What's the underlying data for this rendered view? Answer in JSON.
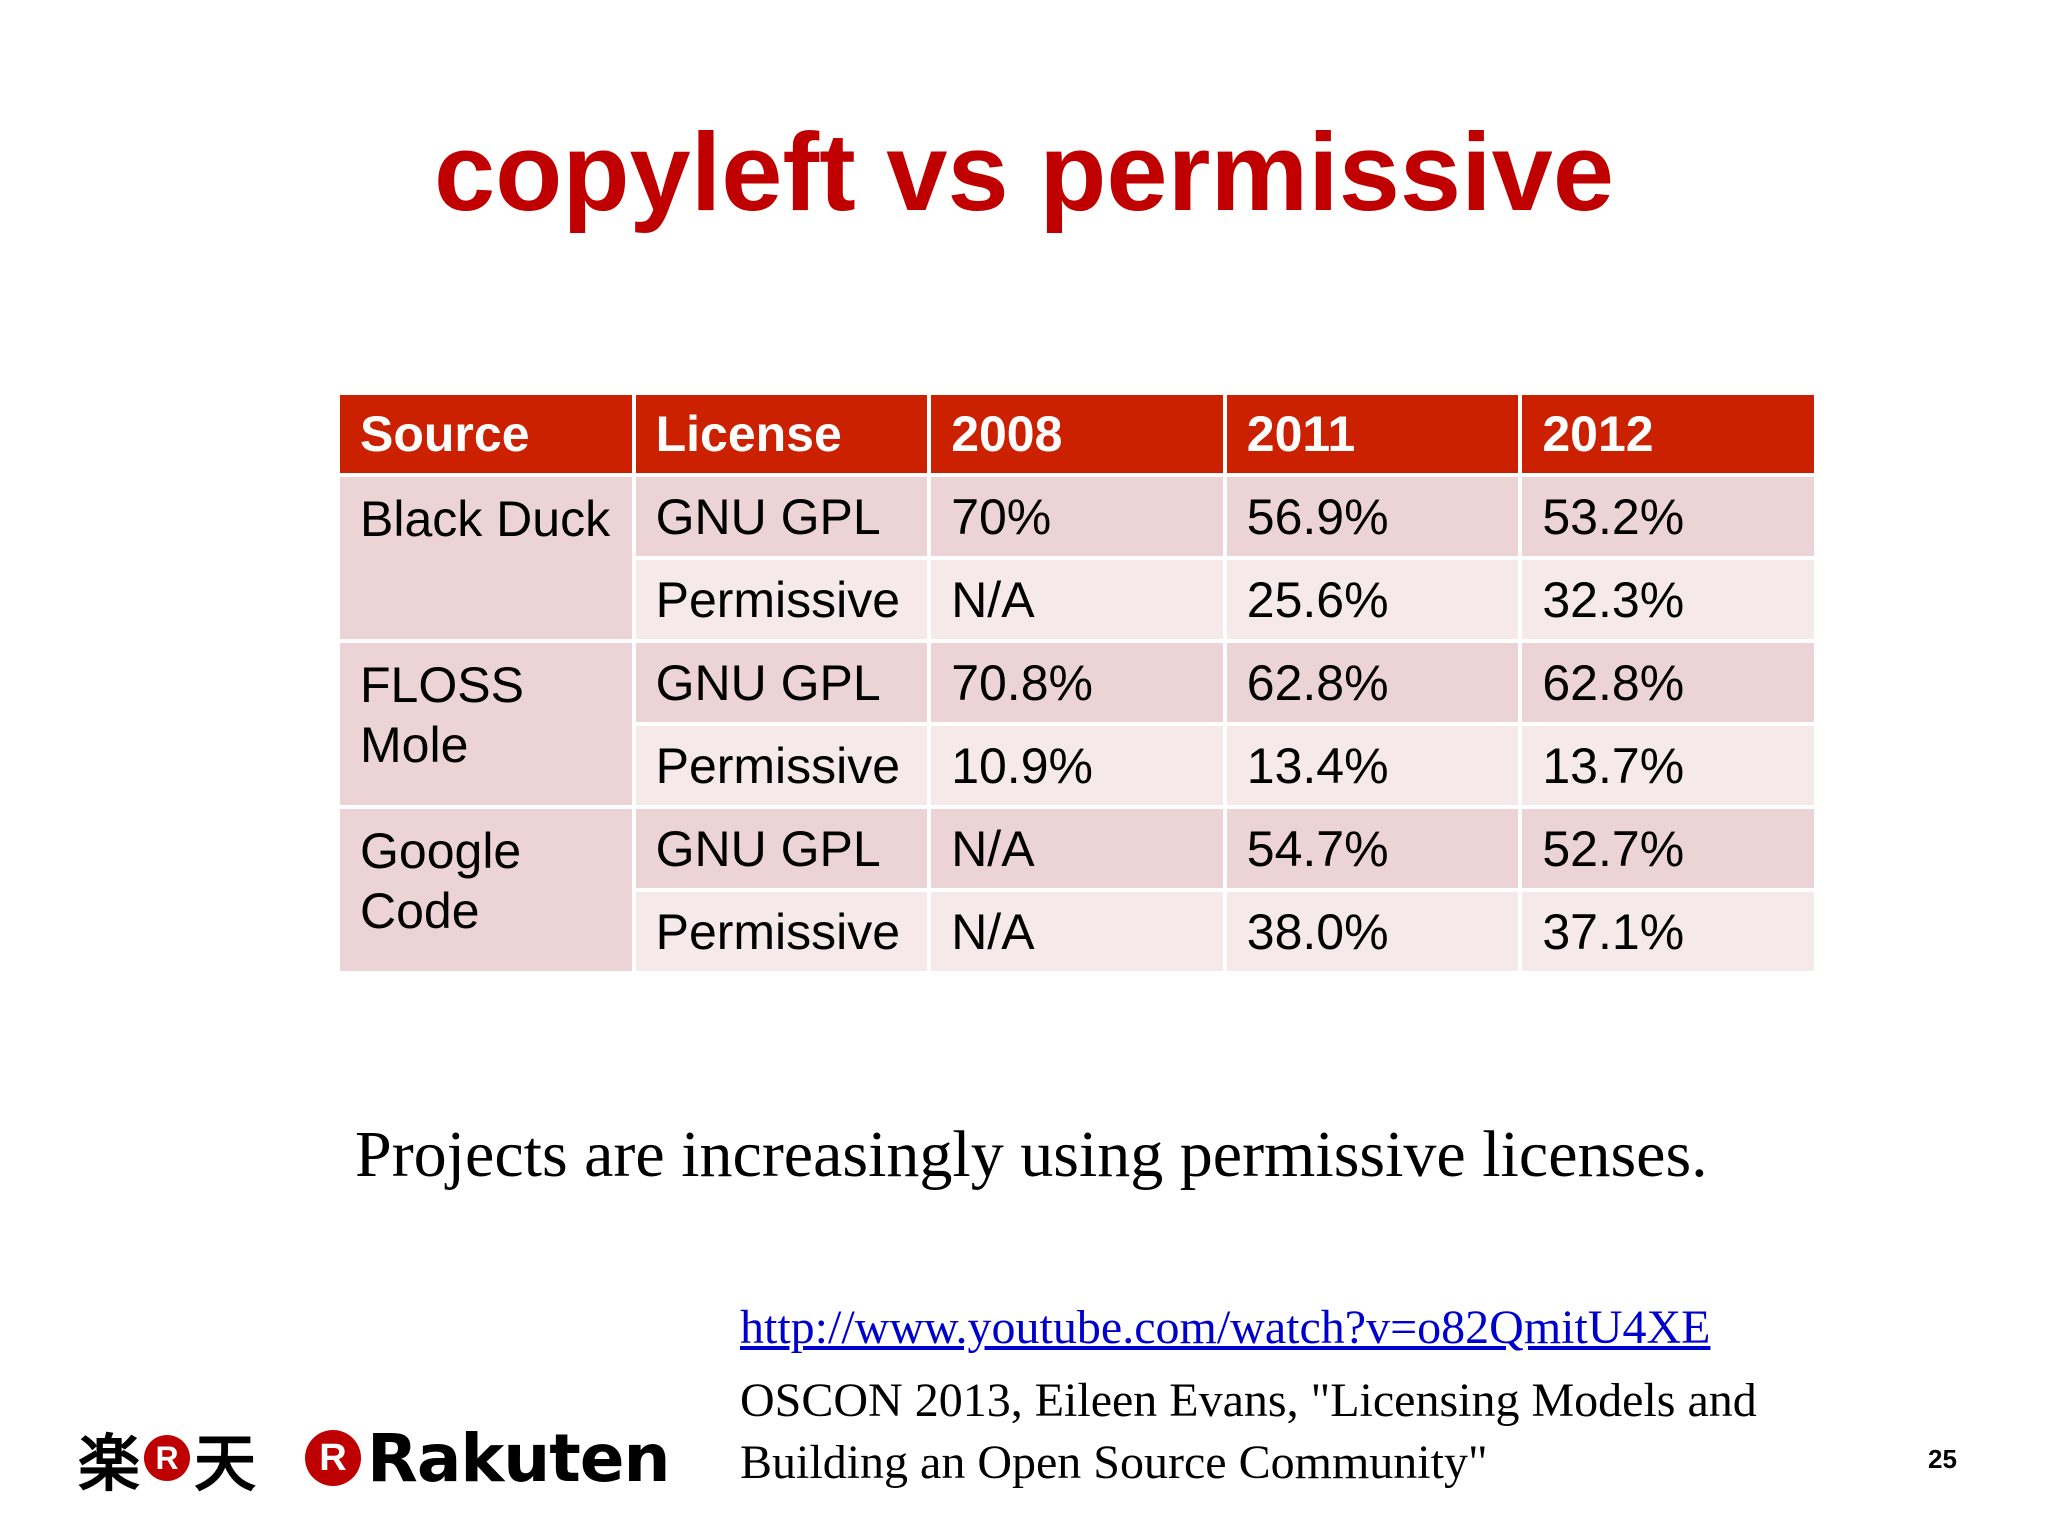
{
  "slide": {
    "title": "copyleft vs permissive",
    "page_number": "25",
    "accent_color": "#c00000",
    "header_color": "#cc2100"
  },
  "table": {
    "headers": [
      "Source",
      "License",
      "2008",
      "2011",
      "2012"
    ],
    "groups": [
      {
        "source": "Black Duck",
        "rows": [
          {
            "license": "GNU GPL",
            "y2008": "70%",
            "y2011": "56.9%",
            "y2012": "53.2%"
          },
          {
            "license": "Permissive",
            "y2008": "N/A",
            "y2011": "25.6%",
            "y2012": "32.3%"
          }
        ]
      },
      {
        "source": "FLOSS Mole",
        "rows": [
          {
            "license": "GNU GPL",
            "y2008": "70.8%",
            "y2011": "62.8%",
            "y2012": "62.8%"
          },
          {
            "license": "Permissive",
            "y2008": "10.9%",
            "y2011": "13.4%",
            "y2012": "13.7%"
          }
        ]
      },
      {
        "source": "Google Code",
        "rows": [
          {
            "license": "GNU GPL",
            "y2008": "N/A",
            "y2011": "54.7%",
            "y2012": "52.7%"
          },
          {
            "license": "Permissive",
            "y2008": "N/A",
            "y2011": "38.0%",
            "y2012": "37.1%"
          }
        ]
      }
    ]
  },
  "note": "Projects are increasingly using permissive licenses.",
  "reference": {
    "link": "http://www.youtube.com/watch?v=o82QmitU4XE",
    "citation": "OSCON 2013, Eileen Evans, \"Licensing Models and\nBuilding an Open Source Community\""
  },
  "logos": {
    "kanji_left": "楽",
    "kanji_right": "天",
    "badge_letter": "R",
    "wordmark": "Rakuten"
  }
}
